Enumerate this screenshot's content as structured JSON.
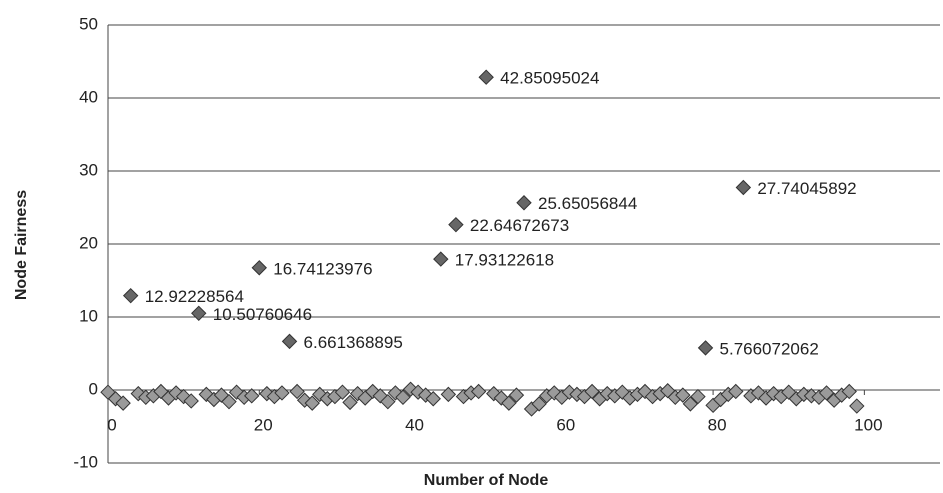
{
  "chart_data": {
    "type": "scatter",
    "x_label": "Number of Node",
    "y_label": "Node Fairness",
    "xlim": [
      0,
      110
    ],
    "xticks": [
      0,
      20,
      40,
      60,
      80,
      100
    ],
    "ylim": [
      -10,
      50
    ],
    "yticks": [
      -10,
      0,
      10,
      20,
      30,
      40,
      50
    ],
    "grid": true,
    "series": [
      {
        "color": "#666666",
        "data_labels": true,
        "x": [
          3,
          12,
          20,
          24,
          44,
          46,
          50,
          55,
          79,
          84
        ],
        "values": [
          12.92228564,
          10.50760646,
          16.74123976,
          6.661368895,
          17.93122618,
          22.64672673,
          42.85095024,
          25.65056844,
          5.766072062,
          27.74045892
        ]
      },
      {
        "color": "#9a9a9a",
        "data_labels": false,
        "x": [
          0,
          1,
          2,
          4,
          5,
          6,
          7,
          8,
          9,
          10,
          11,
          13,
          14,
          15,
          16,
          17,
          18,
          19,
          21,
          22,
          23,
          25,
          26,
          27,
          28,
          29,
          30,
          31,
          32,
          33,
          34,
          35,
          36,
          37,
          38,
          39,
          40,
          41,
          42,
          43,
          45,
          47,
          48,
          49,
          51,
          52,
          53,
          54,
          56,
          57,
          58,
          59,
          60,
          61,
          62,
          63,
          64,
          65,
          66,
          67,
          68,
          69,
          70,
          71,
          72,
          73,
          74,
          75,
          76,
          77,
          78,
          80,
          81,
          82,
          83,
          85,
          86,
          87,
          88,
          89,
          90,
          91,
          92,
          93,
          94,
          95,
          96,
          97,
          98,
          99
        ],
        "values": [
          -0.3,
          -1.2,
          -1.8,
          -0.5,
          -1.0,
          -0.8,
          -0.2,
          -1.1,
          -0.4,
          -0.9,
          -1.5,
          -0.6,
          -1.3,
          -0.7,
          -1.6,
          -0.3,
          -1.0,
          -0.8,
          -0.5,
          -0.9,
          -0.4,
          -0.2,
          -1.4,
          -1.8,
          -0.6,
          -1.2,
          -0.9,
          -0.3,
          -1.7,
          -0.5,
          -1.1,
          -0.2,
          -0.8,
          -1.6,
          -0.4,
          -1.0,
          0.1,
          -0.3,
          -0.7,
          -1.2,
          -0.6,
          -0.9,
          -0.4,
          -0.2,
          -0.5,
          -1.1,
          -1.8,
          -0.7,
          -2.6,
          -1.9,
          -0.8,
          -0.4,
          -1.0,
          -0.3,
          -0.6,
          -0.9,
          -0.2,
          -1.2,
          -0.5,
          -0.8,
          -0.3,
          -1.1,
          -0.6,
          -0.2,
          -0.9,
          -0.5,
          -0.1,
          -1.0,
          -0.7,
          -1.9,
          -0.9,
          -2.1,
          -1.3,
          -0.6,
          -0.2,
          -0.8,
          -0.4,
          -1.1,
          -0.5,
          -0.9,
          -0.3,
          -1.2,
          -0.6,
          -0.8,
          -1.0,
          -0.4,
          -1.4,
          -0.7,
          -0.2,
          -2.2
        ]
      }
    ]
  }
}
